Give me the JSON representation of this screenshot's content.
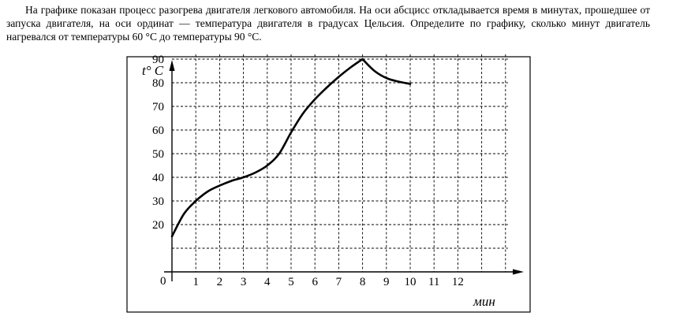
{
  "problem": {
    "text": "На графике показан процесс разогрева двигателя легкового автомобиля. На оси абсцисс откладывается время в минутах, прошедшее от запуска двигателя, на оси ординат — температура двигателя в градусах Цельсия. Определите по графику, сколько минут двигатель нагревался от температуры 60 °C до температуры 90 °C."
  },
  "chart_data": {
    "type": "line",
    "title": "",
    "xlabel": "мин",
    "ylabel": "t° C",
    "origin_label": "0",
    "x_ticks": [
      "1",
      "2",
      "3",
      "4",
      "5",
      "6",
      "7",
      "8",
      "9",
      "10",
      "11",
      "12"
    ],
    "y_ticks": [
      "20",
      "30",
      "40",
      "50",
      "60",
      "70",
      "80",
      "90"
    ],
    "xlim": [
      0,
      14.5
    ],
    "ylim": [
      0,
      92
    ],
    "grid": true,
    "grid_style": "dashed",
    "series": [
      {
        "x": [
          0,
          0.5,
          1,
          1.5,
          2,
          2.5,
          3,
          3.5,
          4,
          4.5,
          5,
          5.5,
          6,
          6.5,
          7,
          7.5,
          8,
          8.5,
          9,
          9.5,
          10
        ],
        "y": [
          15,
          24.5,
          30,
          34,
          36.5,
          38.5,
          40,
          42,
          45,
          50,
          59,
          67,
          73,
          78,
          82.5,
          86.5,
          90,
          85,
          82,
          80.5,
          79.5
        ]
      }
    ]
  }
}
